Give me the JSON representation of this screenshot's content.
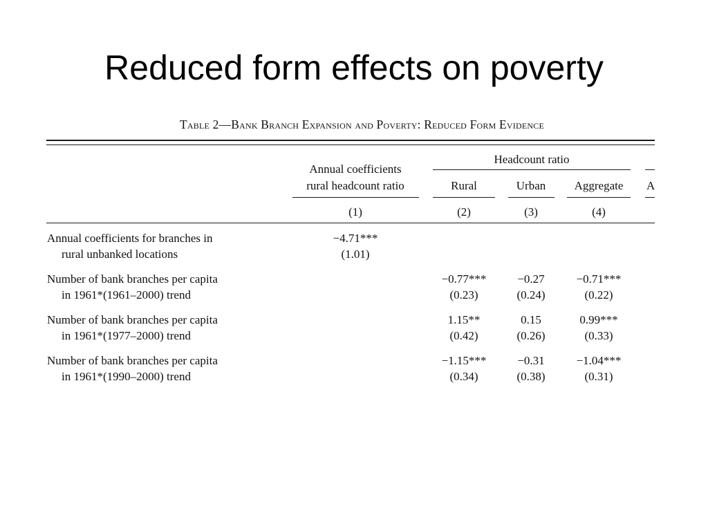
{
  "slide": {
    "title": "Reduced form effects on poverty"
  },
  "table": {
    "caption": "Table 2—Bank Branch Expansion and Poverty: Reduced Form Evidence",
    "header": {
      "col1_line1": "Annual coefficients",
      "col1_line2": "rural headcount ratio",
      "group_label": "Headcount ratio",
      "col2": "Rural",
      "col3": "Urban",
      "col4": "Aggregate",
      "col5_partial": "A",
      "num1": "(1)",
      "num2": "(2)",
      "num3": "(3)",
      "num4": "(4)"
    },
    "rows": [
      {
        "label_line1": "Annual coefficients for branches in",
        "label_line2": "rural unbanked locations",
        "c1": "−4.71***",
        "c1_se": "(1.01)",
        "c2": "",
        "c2_se": "",
        "c3": "",
        "c3_se": "",
        "c4": "",
        "c4_se": ""
      },
      {
        "label_line1": "Number of bank branches per capita",
        "label_line2": "in 1961*(1961–2000) trend",
        "c1": "",
        "c1_se": "",
        "c2": "−0.77***",
        "c2_se": "(0.23)",
        "c3": "−0.27",
        "c3_se": "(0.24)",
        "c4": "−0.71***",
        "c4_se": "(0.22)"
      },
      {
        "label_line1": "Number of bank branches per capita",
        "label_line2": "in 1961*(1977–2000) trend",
        "c1": "",
        "c1_se": "",
        "c2": "1.15**",
        "c2_se": "(0.42)",
        "c3": "0.15",
        "c3_se": "(0.26)",
        "c4": "0.99***",
        "c4_se": "(0.33)"
      },
      {
        "label_line1": "Number of bank branches per capita",
        "label_line2": "in 1961*(1990–2000) trend",
        "c1": "",
        "c1_se": "",
        "c2": "−1.15***",
        "c2_se": "(0.34)",
        "c3": "−0.31",
        "c3_se": "(0.38)",
        "c4": "−1.04***",
        "c4_se": "(0.31)"
      }
    ]
  }
}
